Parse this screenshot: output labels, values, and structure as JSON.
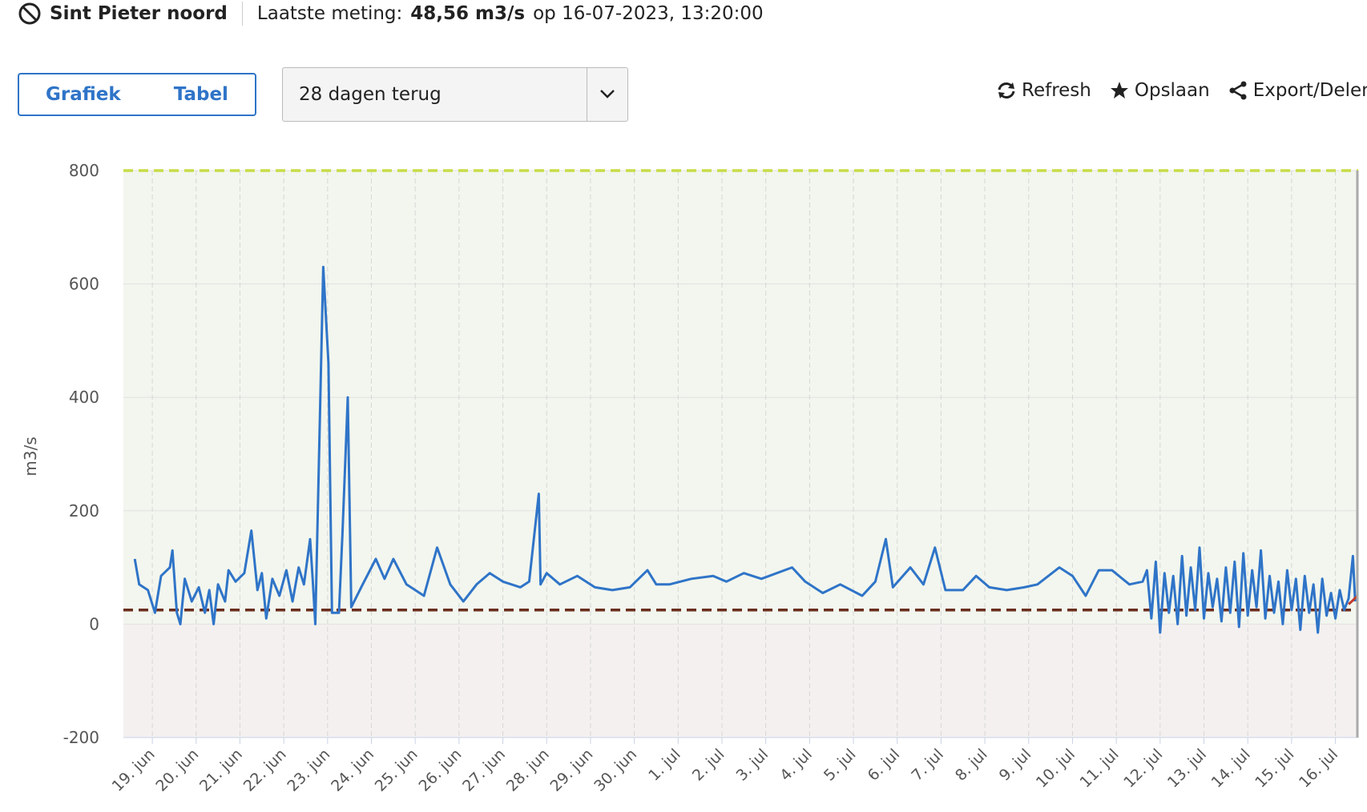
{
  "header": {
    "station": "Sint Pieter noord",
    "measurement_label": "Laatste meting:",
    "measurement_value": "48,56 m3/s",
    "measurement_time": "op 16-07-2023, 13:20:00"
  },
  "toolbar": {
    "tabs": [
      "Grafiek",
      "Tabel"
    ],
    "period": "28 dagen terug",
    "actions": [
      "Refresh",
      "Opslaan",
      "Export/Delen"
    ]
  },
  "chart_data": {
    "type": "line",
    "ylabel": "m3/s",
    "xlim": [
      18.34,
      46.52
    ],
    "xticks": [
      {
        "value": 19,
        "label": "19. jun"
      },
      {
        "value": 20,
        "label": "20. jun"
      },
      {
        "value": 21,
        "label": "21. jun"
      },
      {
        "value": 22,
        "label": "22. jun"
      },
      {
        "value": 23,
        "label": "23. jun"
      },
      {
        "value": 24,
        "label": "24. jun"
      },
      {
        "value": 25,
        "label": "25. jun"
      },
      {
        "value": 26,
        "label": "26. jun"
      },
      {
        "value": 27,
        "label": "27. jun"
      },
      {
        "value": 28,
        "label": "28. jun"
      },
      {
        "value": 29,
        "label": "29. jun"
      },
      {
        "value": 30,
        "label": "30. jun"
      },
      {
        "value": 31,
        "label": "1. jul"
      },
      {
        "value": 32,
        "label": "2. jul"
      },
      {
        "value": 33,
        "label": "3. jul"
      },
      {
        "value": 34,
        "label": "4. jul"
      },
      {
        "value": 35,
        "label": "5. jul"
      },
      {
        "value": 36,
        "label": "6. jul"
      },
      {
        "value": 37,
        "label": "7. jul"
      },
      {
        "value": 38,
        "label": "8. jul"
      },
      {
        "value": 39,
        "label": "9. jul"
      },
      {
        "value": 40,
        "label": "10. jul"
      },
      {
        "value": 41,
        "label": "11. jul"
      },
      {
        "value": 42,
        "label": "12. jul"
      },
      {
        "value": 43,
        "label": "13. jul"
      },
      {
        "value": 44,
        "label": "14. jul"
      },
      {
        "value": 45,
        "label": "15. jul"
      },
      {
        "value": 46,
        "label": "16. jul"
      }
    ],
    "ylim": [
      -200,
      800
    ],
    "yticks": [
      -200,
      0,
      200,
      400,
      600,
      800
    ],
    "grid": true,
    "bands": [
      {
        "from": 0,
        "to": 800,
        "color": "#f2f6ee"
      },
      {
        "from": -200,
        "to": 0,
        "color": "#f4f0f0"
      }
    ],
    "thresholds": [
      {
        "value": 800,
        "color": "#c8dc46"
      },
      {
        "value": 25,
        "color": "#6b2e1e"
      }
    ],
    "series": [
      {
        "color": "#2f74c8",
        "x": [
          18.6,
          18.7,
          18.9,
          19.06,
          19.2,
          19.4,
          19.46,
          19.56,
          19.64,
          19.74,
          19.9,
          20.06,
          20.2,
          20.3,
          20.4,
          20.5,
          20.66,
          20.74,
          20.9,
          21.1,
          21.26,
          21.4,
          21.5,
          21.6,
          21.74,
          21.9,
          22.06,
          22.2,
          22.34,
          22.46,
          22.6,
          22.66,
          22.72,
          22.9,
          23.02,
          23.1,
          23.26,
          23.34,
          23.46,
          23.54,
          23.8,
          24.1,
          24.3,
          24.5,
          24.8,
          25.2,
          25.5,
          25.8,
          26.1,
          26.4,
          26.7,
          27.0,
          27.4,
          27.6,
          27.82,
          27.86,
          28.0,
          28.3,
          28.7,
          29.1,
          29.5,
          29.9,
          30.3,
          30.5,
          30.8,
          31.3,
          31.8,
          32.1,
          32.5,
          32.9,
          33.6,
          33.9,
          34.3,
          34.7,
          35.2,
          35.5,
          35.74,
          35.9,
          36.3,
          36.6,
          36.86,
          37.1,
          37.5,
          37.8,
          38.1,
          38.5,
          38.9,
          39.2,
          39.7,
          40.0,
          40.3,
          40.6,
          40.9,
          41.3,
          41.6,
          41.7,
          41.8,
          41.9,
          42.0,
          42.1,
          42.2,
          42.3,
          42.4,
          42.5,
          42.6,
          42.7,
          42.8,
          42.9,
          43.0,
          43.1,
          43.2,
          43.3,
          43.4,
          43.5,
          43.6,
          43.7,
          43.8,
          43.9,
          44.0,
          44.1,
          44.2,
          44.3,
          44.4,
          44.5,
          44.6,
          44.7,
          44.8,
          44.9,
          45.0,
          45.1,
          45.2,
          45.3,
          45.4,
          45.5,
          45.6,
          45.7,
          45.8,
          45.9,
          46.0,
          46.1,
          46.2,
          46.3,
          46.4,
          46.45
        ],
        "values": [
          115,
          70,
          60,
          20,
          85,
          100,
          130,
          20,
          0,
          80,
          40,
          65,
          20,
          60,
          0,
          70,
          40,
          95,
          75,
          90,
          165,
          60,
          90,
          10,
          80,
          50,
          95,
          40,
          100,
          70,
          150,
          80,
          0,
          630,
          460,
          20,
          20,
          160,
          400,
          30,
          70,
          115,
          80,
          115,
          70,
          50,
          135,
          70,
          40,
          70,
          90,
          75,
          65,
          75,
          230,
          70,
          90,
          70,
          85,
          65,
          60,
          65,
          95,
          70,
          70,
          80,
          85,
          75,
          90,
          80,
          100,
          75,
          55,
          70,
          50,
          75,
          150,
          65,
          100,
          70,
          135,
          60,
          60,
          85,
          65,
          60,
          65,
          70,
          100,
          85,
          50,
          95,
          95,
          70,
          75,
          95,
          10,
          110,
          -15,
          90,
          20,
          85,
          0,
          120,
          15,
          100,
          25,
          135,
          10,
          90,
          30,
          80,
          5,
          100,
          20,
          110,
          -5,
          125,
          15,
          95,
          30,
          130,
          10,
          85,
          20,
          75,
          0,
          95,
          25,
          80,
          -10,
          85,
          20,
          70,
          -15,
          80,
          15,
          55,
          10,
          60,
          25,
          45,
          120,
          40
        ]
      },
      {
        "color": "#c0392b",
        "x": [
          46.3,
          46.4,
          46.5
        ],
        "values": [
          35,
          42,
          50
        ]
      }
    ]
  }
}
